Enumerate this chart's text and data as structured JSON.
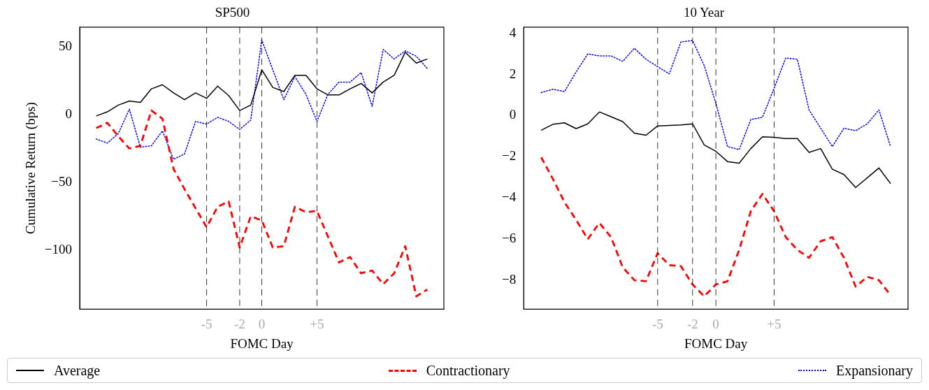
{
  "chart_data": [
    {
      "type": "line",
      "title": "SP500",
      "xlabel": "FOMC Day",
      "ylabel": "Cumulative Return (bps)",
      "x": [
        -15,
        -14,
        -13,
        -12,
        -11,
        -10,
        -9,
        -8,
        -7,
        -6,
        -5,
        -4,
        -3,
        -2,
        -1,
        0,
        1,
        2,
        3,
        4,
        5,
        6,
        7,
        8,
        9,
        10,
        11,
        12,
        13,
        14,
        15
      ],
      "series": [
        {
          "name": "Average",
          "color": "#000000",
          "line_style": "solid",
          "values": [
            -1,
            2,
            7,
            10,
            9,
            19,
            22,
            16,
            11,
            16,
            12,
            21,
            14,
            3,
            7,
            33,
            20,
            17,
            29,
            29,
            19,
            14.5,
            14.5,
            19,
            23,
            16,
            24,
            29,
            46,
            38,
            41
          ]
        },
        {
          "name": "Contractionary",
          "color": "#ff0000",
          "line_style": "dashed",
          "values": [
            -10,
            -6,
            -16,
            -25,
            -23,
            3,
            -3,
            -40,
            -55,
            -69,
            -83,
            -68,
            -64,
            -98,
            -75,
            -78,
            -98,
            -97,
            -68,
            -72,
            -71,
            -90,
            -109,
            -105,
            -117,
            -115,
            -125,
            -117,
            -97,
            -134,
            -129
          ]
        },
        {
          "name": "Expansionary",
          "color": "#0000ff",
          "line_style": "dotted",
          "values": [
            -18,
            -21,
            -14,
            4,
            -24,
            -23,
            -12,
            -33,
            -29,
            -5,
            -7,
            -2,
            -5,
            -11,
            -4,
            55,
            33,
            11,
            28,
            15,
            -5,
            15,
            24,
            24,
            31,
            6,
            48,
            41,
            47,
            43,
            34
          ]
        }
      ],
      "xlim": [
        -16.5,
        16.5
      ],
      "ylim": [
        -143.5,
        64.5
      ],
      "xticks": [
        {
          "value": -5,
          "label": "-5"
        },
        {
          "value": -2,
          "label": "-2"
        },
        0,
        {
          "value": 5,
          "label": "+5"
        }
      ],
      "yticks": [
        {
          "value": -100,
          "label": "−100"
        },
        {
          "value": -50,
          "label": "−50"
        },
        0,
        50
      ],
      "ref_lines": [
        {
          "axis": "x",
          "value": -5,
          "color": "#000000",
          "line_style": "dashed"
        },
        {
          "axis": "x",
          "value": -2,
          "color": "#000000",
          "line_style": "dashed"
        },
        {
          "axis": "x",
          "value": 0,
          "color": "#000000",
          "line_style": "dashed"
        },
        {
          "axis": "x",
          "value": 5,
          "color": "#000000",
          "line_style": "dashed"
        }
      ],
      "grid": false,
      "legend": "bottom",
      "marker": "none"
    },
    {
      "type": "line",
      "title": "10 Year",
      "xlabel": "FOMC Day",
      "x": [
        -15,
        -14,
        -13,
        -12,
        -11,
        -10,
        -9,
        -8,
        -7,
        -6,
        -5,
        -4,
        -3,
        -2,
        -1,
        0,
        1,
        2,
        3,
        4,
        5,
        6,
        7,
        8,
        9,
        10,
        11,
        12,
        13,
        14,
        15
      ],
      "series": [
        {
          "name": "Average",
          "color": "#000000",
          "line_style": "solid",
          "values": [
            -0.71,
            -0.42,
            -0.35,
            -0.63,
            -0.4,
            0.18,
            -0.05,
            -0.29,
            -0.85,
            -0.95,
            -0.5,
            -0.48,
            -0.45,
            -0.4,
            -1.42,
            -1.73,
            -2.23,
            -2.31,
            -1.6,
            -1.03,
            -1.05,
            -1.11,
            -1.11,
            -1.78,
            -1.6,
            -2.6,
            -2.86,
            -3.49,
            -3.02,
            -2.54,
            -3.3
          ]
        },
        {
          "name": "Contractionary",
          "color": "#ff0000",
          "line_style": "dashed",
          "values": [
            -2.02,
            -3.07,
            -4.2,
            -5.06,
            -6.0,
            -5.21,
            -5.9,
            -7.36,
            -7.99,
            -8.04,
            -6.68,
            -7.26,
            -7.31,
            -8.2,
            -8.77,
            -8.2,
            -8.04,
            -6.52,
            -4.64,
            -3.8,
            -4.64,
            -5.9,
            -6.52,
            -6.9,
            -6.1,
            -5.9,
            -6.9,
            -8.3,
            -7.83,
            -7.99,
            -8.72
          ]
        },
        {
          "name": "Expansionary",
          "color": "#0000ff",
          "line_style": "dotted",
          "values": [
            1.12,
            1.28,
            1.17,
            2.12,
            3.0,
            2.9,
            2.9,
            2.64,
            3.27,
            2.74,
            2.38,
            2.03,
            3.58,
            3.65,
            2.43,
            0.6,
            -1.5,
            -1.65,
            -0.19,
            -0.08,
            1.33,
            2.8,
            2.74,
            0.28,
            -0.61,
            -1.5,
            -0.61,
            -0.73,
            -0.4,
            0.28,
            -1.5
          ]
        }
      ],
      "xlim": [
        -16.5,
        16.5
      ],
      "ylim": [
        -9.4,
        4.3
      ],
      "xticks": [
        {
          "value": -5,
          "label": "-5"
        },
        {
          "value": -2,
          "label": "-2"
        },
        0,
        {
          "value": 5,
          "label": "+5"
        }
      ],
      "yticks": [
        {
          "value": -8,
          "label": "−8"
        },
        {
          "value": -6,
          "label": "−6"
        },
        {
          "value": -4,
          "label": "−4"
        },
        {
          "value": -2,
          "label": "−2"
        },
        0,
        2,
        4
      ],
      "ref_lines": [
        {
          "axis": "x",
          "value": -5,
          "color": "#000000",
          "line_style": "dashed"
        },
        {
          "axis": "x",
          "value": -2,
          "color": "#000000",
          "line_style": "dashed"
        },
        {
          "axis": "x",
          "value": 0,
          "color": "#000000",
          "line_style": "dashed"
        },
        {
          "axis": "x",
          "value": 5,
          "color": "#000000",
          "line_style": "dashed"
        }
      ],
      "grid": false,
      "legend": "bottom",
      "marker": "none"
    }
  ]
}
